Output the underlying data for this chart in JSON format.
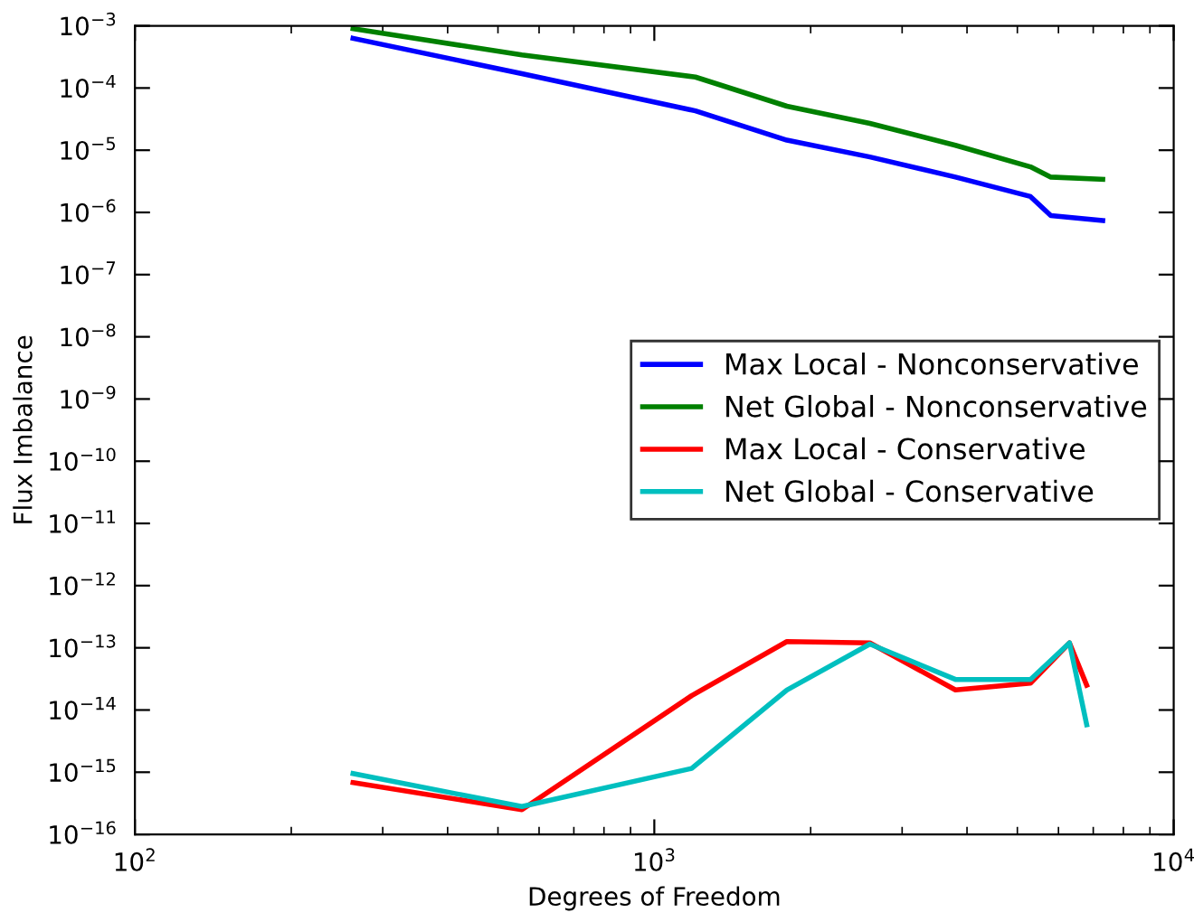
{
  "chart_data": {
    "type": "line",
    "xlabel": "Degrees of Freedom",
    "ylabel": "Flux Imbalance",
    "log": "xy",
    "xlim": [
      100,
      10000
    ],
    "ylim": [
      1e-16,
      0.001
    ],
    "xticks": [
      {
        "value": 100,
        "label": "10$^{2}$"
      },
      {
        "value": 1000,
        "label": "10$^{3}$"
      },
      {
        "value": 10000,
        "label": "10$^{4}$"
      }
    ],
    "yticks": [
      {
        "value": 1e-16,
        "label": "10$^{−16}$"
      },
      {
        "value": 1e-15,
        "label": "10$^{−15}$"
      },
      {
        "value": 1e-14,
        "label": "10$^{−14}$"
      },
      {
        "value": 1e-13,
        "label": "10$^{−13}$"
      },
      {
        "value": 1e-12,
        "label": "10$^{−12}$"
      },
      {
        "value": 1e-11,
        "label": "10$^{−11}$"
      },
      {
        "value": 1e-10,
        "label": "10$^{−10}$"
      },
      {
        "value": 1e-09,
        "label": "10$^{−9}$"
      },
      {
        "value": 1e-08,
        "label": "10$^{−8}$"
      },
      {
        "value": 1e-07,
        "label": "10$^{−7}$"
      },
      {
        "value": 1e-06,
        "label": "10$^{−6}$"
      },
      {
        "value": 1e-05,
        "label": "10$^{−5}$"
      },
      {
        "value": 0.0001,
        "label": "10$^{−4}$"
      },
      {
        "value": 0.001,
        "label": "10$^{−3}$"
      }
    ],
    "grid": false,
    "legend": "center right",
    "marker": "none",
    "line_style": "solid",
    "series": [
      {
        "name": "Max Local - Nonconservative",
        "color": "#0000ff",
        "x": [
          263,
          556,
          1200,
          1800,
          2600,
          3800,
          5300,
          5800,
          7300
        ],
        "values": [
          0.00063,
          0.00017,
          4.3e-05,
          1.45e-05,
          7.8e-06,
          3.7e-06,
          1.8e-06,
          8.9e-07,
          7.4e-07
        ]
      },
      {
        "name": "Net Global - Nonconservative",
        "color": "#008000",
        "x": [
          263,
          556,
          1200,
          1800,
          2600,
          3800,
          5300,
          5800,
          7300
        ],
        "values": [
          0.0009,
          0.00034,
          0.00015,
          5.1e-05,
          2.7e-05,
          1.2e-05,
          5.4e-06,
          3.7e-06,
          3.4e-06
        ]
      },
      {
        "name": "Max Local - Conservative",
        "color": "#ff0000",
        "x": [
          263,
          556,
          1180,
          1800,
          2600,
          3800,
          5300,
          6300,
          6800
        ],
        "values": [
          6.8e-16,
          2.5e-16,
          1.7e-14,
          1.26e-13,
          1.2e-13,
          2.1e-14,
          2.7e-14,
          1.2e-13,
          2.5e-14
        ]
      },
      {
        "name": "Net Global - Conservative",
        "color": "#00bfbf",
        "x": [
          263,
          556,
          1180,
          1800,
          2600,
          3800,
          5300,
          6300,
          6800
        ],
        "values": [
          9.5e-16,
          2.8e-16,
          1.15e-15,
          2.1e-14,
          1.15e-13,
          3.1e-14,
          3.1e-14,
          1.2e-13,
          5.8e-15
        ]
      }
    ]
  }
}
